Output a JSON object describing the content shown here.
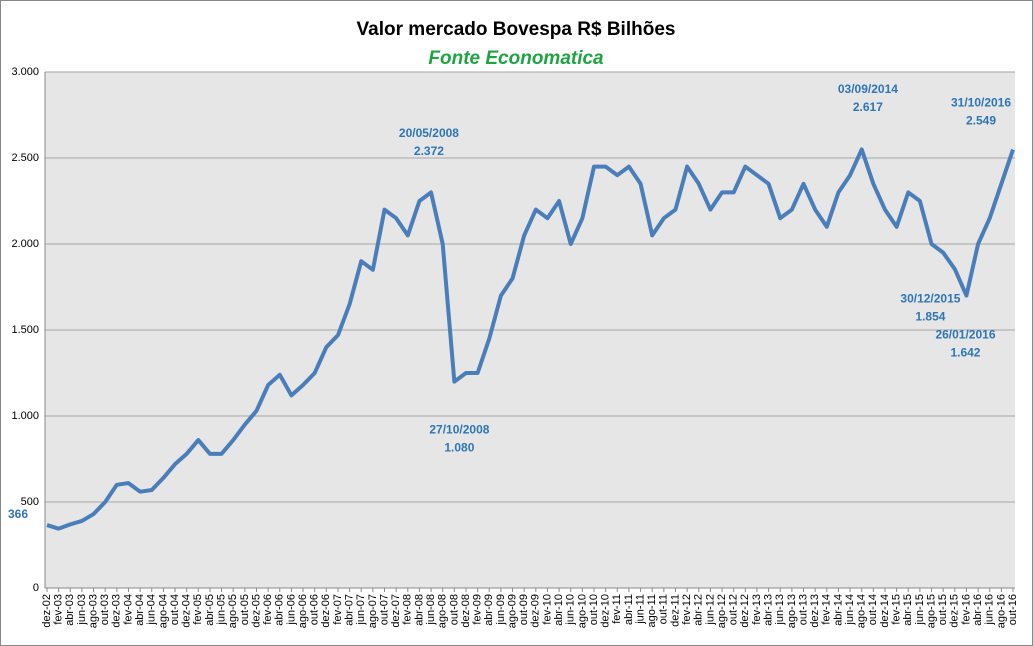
{
  "chart_data": {
    "type": "line",
    "title": "Valor mercado Bovespa R$ Bilhões",
    "subtitle": "Fonte Economatica",
    "categories": [
      "dez-02",
      "fev-03",
      "abr-03",
      "jun-03",
      "ago-03",
      "out-03",
      "dez-03",
      "fev-04",
      "abr-04",
      "jun-04",
      "ago-04",
      "out-04",
      "dez-04",
      "fev-05",
      "abr-05",
      "jun-05",
      "ago-05",
      "out-05",
      "dez-05",
      "fev-06",
      "abr-06",
      "jun-06",
      "ago-06",
      "out-06",
      "dez-06",
      "fev-07",
      "abr-07",
      "jun-07",
      "ago-07",
      "out-07",
      "dez-07",
      "fev-08",
      "abr-08",
      "jun-08",
      "ago-08",
      "out-08",
      "dez-08",
      "fev-09",
      "abr-09",
      "jun-09",
      "ago-09",
      "out-09",
      "dez-09",
      "fev-10",
      "abr-10",
      "jun-10",
      "ago-10",
      "out-10",
      "dez-10",
      "fev-11",
      "abr-11",
      "jun-11",
      "ago-11",
      "out-11",
      "dez-11",
      "fev-12",
      "abr-12",
      "jun-12",
      "ago-12",
      "out-12",
      "dez-12",
      "fev-13",
      "abr-13",
      "jun-13",
      "ago-13",
      "out-13",
      "dez-13",
      "fev-14",
      "abr-14",
      "jun-14",
      "ago-14",
      "out-14",
      "dez-14",
      "fev-15",
      "abr-15",
      "jun-15",
      "ago-15",
      "out-15",
      "dez-15",
      "fev-16",
      "abr-16",
      "jun-16",
      "ago-16",
      "out-16"
    ],
    "series": [
      {
        "color": "#4a7ebb",
        "values": [
          366,
          345,
          370,
          390,
          430,
          500,
          600,
          610,
          560,
          570,
          640,
          720,
          780,
          860,
          780,
          780,
          860,
          950,
          1030,
          1180,
          1240,
          1120,
          1180,
          1250,
          1400,
          1470,
          1650,
          1900,
          1850,
          2200,
          2150,
          2050,
          2250,
          2300,
          2000,
          1200,
          1250,
          1250,
          1450,
          1700,
          1800,
          2050,
          2200,
          2150,
          2250,
          2000,
          2150,
          2450,
          2450,
          2400,
          2450,
          2350,
          2050,
          2150,
          2200,
          2450,
          2350,
          2200,
          2300,
          2300,
          2450,
          2400,
          2350,
          2150,
          2200,
          2350,
          2200,
          2100,
          2300,
          2400,
          2550,
          2350,
          2200,
          2100,
          2300,
          2250,
          2000,
          1950,
          1854,
          1700,
          2000,
          2150,
          2350,
          2549
        ]
      }
    ],
    "ylim": [
      0,
      3000
    ],
    "yticks": [
      0,
      500,
      {
        "value": 1000,
        "label": "1.000"
      },
      {
        "value": 1500,
        "label": "1.500"
      },
      {
        "value": 2000,
        "label": "2.000"
      },
      {
        "value": 2500,
        "label": "2.500"
      },
      {
        "value": 3000,
        "label": "3.000"
      }
    ],
    "grid": true,
    "annotations": [
      {
        "value": 366
      },
      {
        "date": "20/05/2008",
        "value": 2372,
        "value_label": "2.372"
      },
      {
        "date": "27/10/2008",
        "value": 1080,
        "value_label": "1.080"
      },
      {
        "date": "03/09/2014",
        "value": 2617,
        "value_label": "2.617"
      },
      {
        "date": "31/10/2016",
        "value": 2549,
        "value_label": "2.549"
      },
      {
        "date": "30/12/2015",
        "value": 1854,
        "value_label": "1.854"
      },
      {
        "date": "26/01/2016",
        "value": 1642,
        "value_label": "1.642"
      }
    ]
  }
}
